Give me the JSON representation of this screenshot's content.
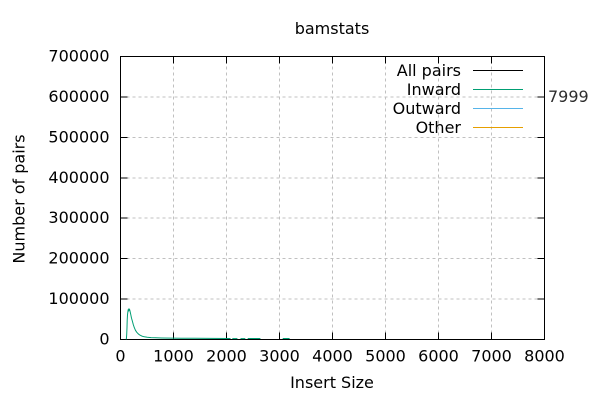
{
  "chart_data": {
    "type": "line",
    "title": "bamstats",
    "xlabel": "Insert Size",
    "ylabel": "Number of pairs",
    "xlim": [
      0,
      8000
    ],
    "ylim": [
      0,
      700000
    ],
    "x_ticks": [
      0,
      1000,
      2000,
      3000,
      4000,
      5000,
      6000,
      7000,
      8000
    ],
    "y_ticks": [
      0,
      100000,
      200000,
      300000,
      400000,
      500000,
      600000,
      700000
    ],
    "grid": true,
    "grid_style": "dashed",
    "legend_position": "top-right-inside",
    "annotation": {
      "text": "7999",
      "x": 7999,
      "y": 600000
    },
    "series": [
      {
        "name": "All pairs",
        "color": "#000000",
        "segments": []
      },
      {
        "name": "Inward",
        "color": "#009E73",
        "segments": [
          [
            [
              105,
              300
            ],
            [
              112,
              2500
            ],
            [
              117,
              12000
            ],
            [
              122,
              30000
            ],
            [
              127,
              48000
            ],
            [
              133,
              61000
            ],
            [
              139,
              69000
            ],
            [
              146,
              74000
            ],
            [
              152,
              70500
            ],
            [
              158,
              76000
            ],
            [
              164,
              72000
            ],
            [
              170,
              75000
            ],
            [
              177,
              71500
            ],
            [
              185,
              67000
            ],
            [
              196,
              60000
            ],
            [
              208,
              53000
            ],
            [
              222,
              46000
            ],
            [
              240,
              37500
            ],
            [
              260,
              29500
            ],
            [
              282,
              23000
            ],
            [
              306,
              18000
            ],
            [
              334,
              14000
            ],
            [
              366,
              10800
            ],
            [
              404,
              8400
            ],
            [
              450,
              6700
            ],
            [
              505,
              5500
            ],
            [
              575,
              4700
            ],
            [
              660,
              4100
            ],
            [
              780,
              3700
            ],
            [
              950,
              3400
            ],
            [
              1150,
              3100
            ],
            [
              1400,
              2900
            ],
            [
              1700,
              2700
            ],
            [
              2075,
              2500
            ]
          ],
          [
            [
              2110,
              2300
            ],
            [
              2205,
              2300
            ]
          ],
          [
            [
              2265,
              2300
            ],
            [
              2355,
              2300
            ]
          ],
          [
            [
              2400,
              2400
            ],
            [
              2640,
              2400
            ]
          ],
          [
            [
              3060,
              2500
            ],
            [
              3190,
              2500
            ]
          ]
        ]
      },
      {
        "name": "Outward",
        "color": "#56B4E9",
        "segments": []
      },
      {
        "name": "Other",
        "color": "#E69F00",
        "segments": []
      }
    ]
  }
}
